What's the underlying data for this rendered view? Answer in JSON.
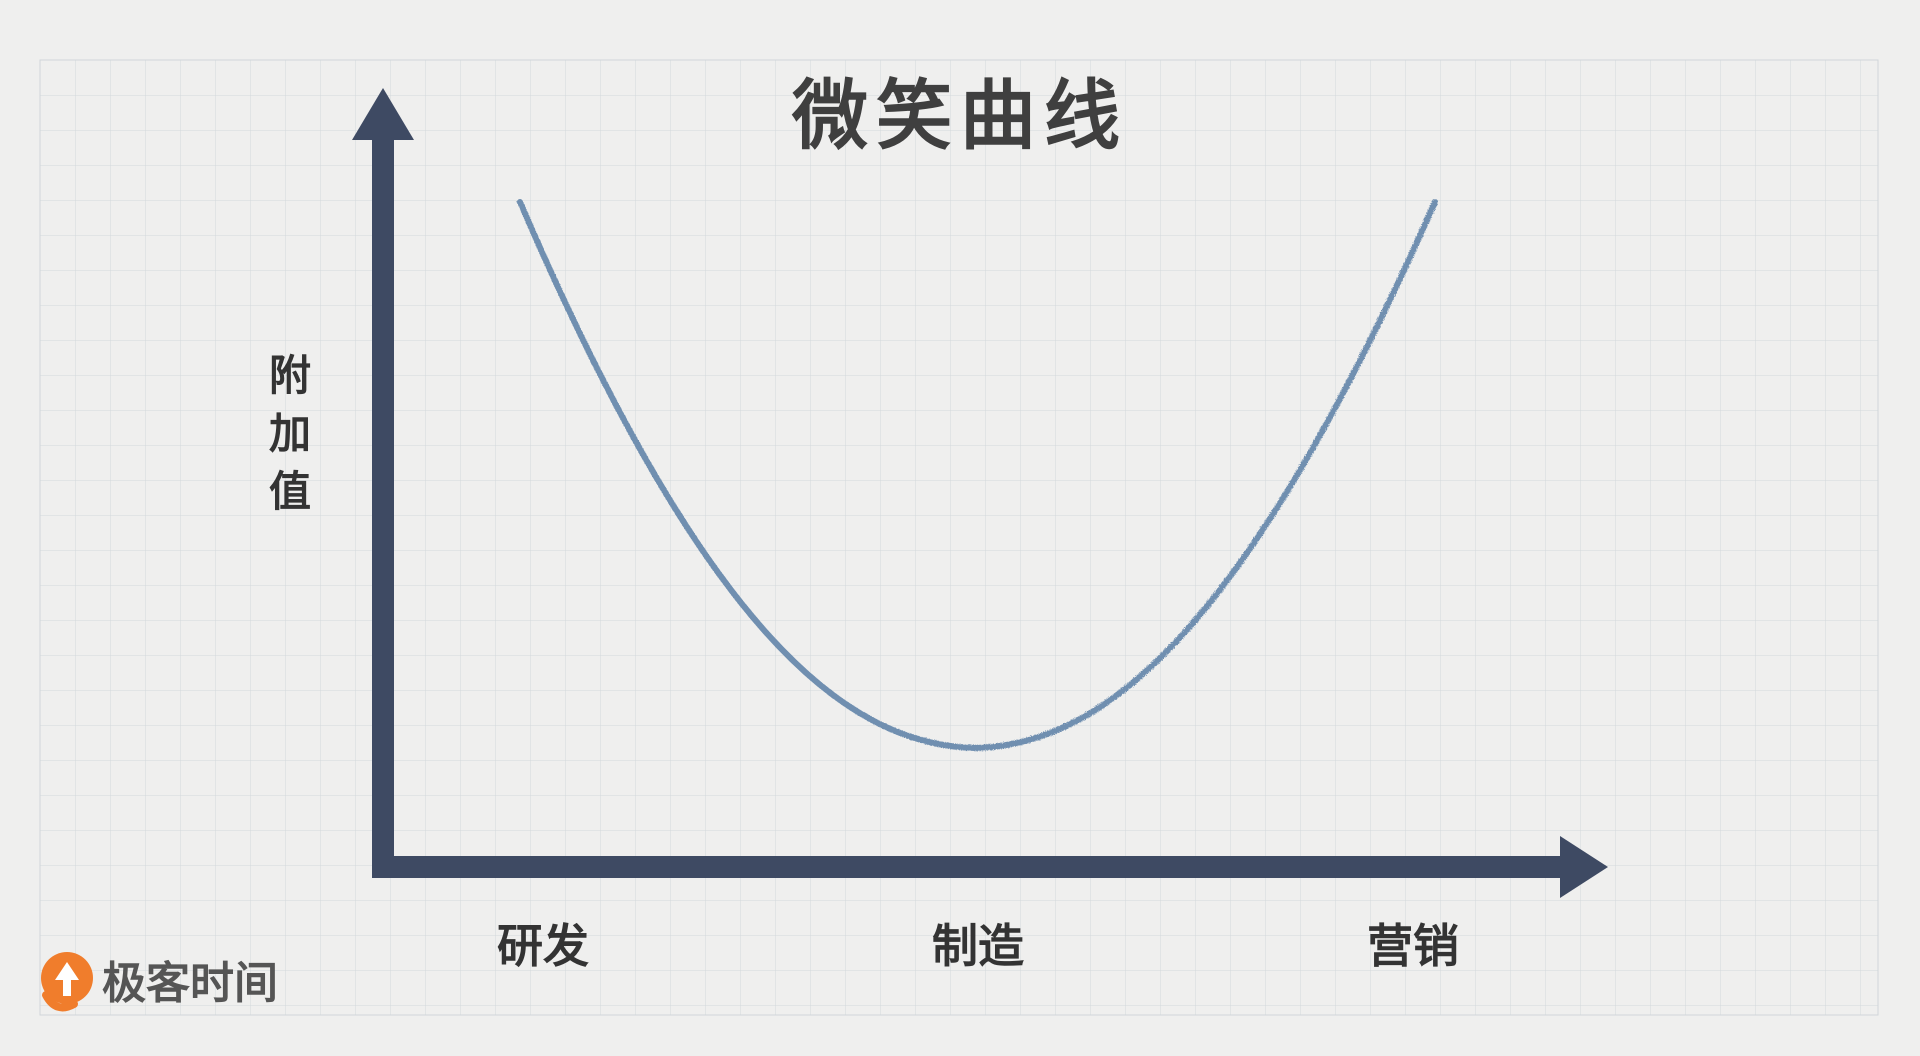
{
  "title": "微笑曲线",
  "y_axis_label": "附加值",
  "x_axis_categories": [
    "研发",
    "制造",
    "营销"
  ],
  "brand": {
    "name": "极客时间",
    "logo_color": "#f07d2c"
  },
  "colors": {
    "axis": "#3e4a63",
    "curve": "#6f8fb0",
    "grid": "#d6dcdf",
    "background": "#efefee",
    "text": "#333333"
  }
}
